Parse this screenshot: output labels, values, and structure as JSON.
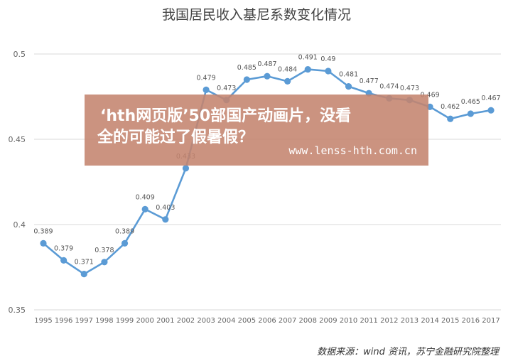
{
  "chart_data": {
    "type": "line",
    "title": "我国居民收入基尼系数变化情况",
    "categories": [
      "1995",
      "1996",
      "1997",
      "1998",
      "1999",
      "2000",
      "2001",
      "2002",
      "2003",
      "2004",
      "2005",
      "2006",
      "2007",
      "2008",
      "2009",
      "2010",
      "2011",
      "2012",
      "2013",
      "2014",
      "2015",
      "2016",
      "2017"
    ],
    "series": [
      {
        "values": [
          0.389,
          0.379,
          0.371,
          0.378,
          0.389,
          0.409,
          0.403,
          0.433,
          0.479,
          0.473,
          0.485,
          0.487,
          0.484,
          0.491,
          0.49,
          0.481,
          0.477,
          0.474,
          0.473,
          0.469,
          0.462,
          0.465,
          0.467
        ],
        "labels": [
          "0.389",
          "0.379",
          "0.371",
          "0.378",
          "0.389",
          "0.409",
          "0.403",
          "0.433",
          "0.479",
          "0.473",
          "0.485",
          "0.487",
          "0.484",
          "0.491",
          "0.49",
          "0.481",
          "0.477",
          "0.474",
          "0.473",
          "0.469",
          "0.462",
          "0.465",
          "0.467"
        ],
        "color": "#5b9bd5"
      }
    ],
    "yticks": [
      "0.35",
      "0.4",
      "0.45",
      "0.5"
    ],
    "ylim": [
      0.35,
      0.5
    ],
    "grid": true,
    "legend": "none"
  },
  "watermark": {
    "line1": "‘hth网页版’50部国产动画片，没看",
    "line2": "全的可能过了假暑假？",
    "url": "www.lenss-hth.com.cn"
  },
  "source": "数据来源：wind 资讯，苏宁金融研究院整理"
}
